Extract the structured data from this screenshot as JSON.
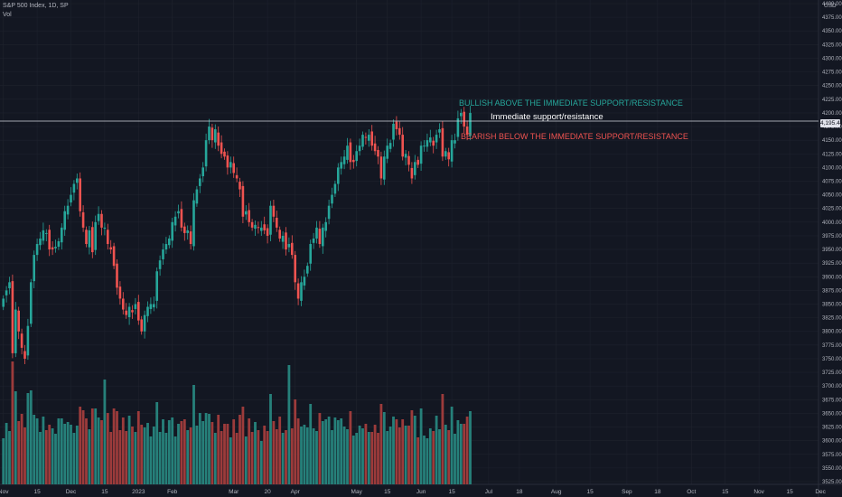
{
  "legend": {
    "symbol": "S&P 500 Index, 1D, SP",
    "volume_label": "Vol"
  },
  "price_axis": {
    "currency": "USD"
  },
  "current_price": "4,195.44",
  "chart_data": {
    "type": "candlestick",
    "title": "S&P 500 Index, 1D, SP",
    "ylim": [
      3525,
      4400
    ],
    "y_ticks": [
      "4400.00",
      "4375.00",
      "4350.00",
      "4325.00",
      "4300.00",
      "4275.00",
      "4250.00",
      "4225.00",
      "4200.00",
      "4175.00",
      "4150.00",
      "4125.00",
      "4100.00",
      "4075.00",
      "4050.00",
      "4025.00",
      "4000.00",
      "3975.00",
      "3950.00",
      "3925.00",
      "3900.00",
      "3875.00",
      "3850.00",
      "3825.00",
      "3800.00",
      "3775.00",
      "3750.00",
      "3725.00",
      "3700.00",
      "3675.00",
      "3650.00",
      "3625.00",
      "3600.00",
      "3575.00",
      "3550.00",
      "3525.00"
    ],
    "x_ticks": [
      "Nov",
      "15",
      "Dec",
      "15",
      "2023",
      "Feb",
      "Mar",
      "20",
      "Apr",
      "May",
      "15",
      "Jun",
      "15",
      "Jul",
      "18",
      "Aug",
      "15",
      "Sep",
      "18",
      "Oct",
      "15",
      "Nov",
      "15",
      "Dec"
    ],
    "x_tick_index": [
      0,
      11,
      22,
      33,
      44,
      55,
      75,
      86,
      95,
      115,
      125,
      136,
      146,
      158,
      168,
      180,
      191,
      203,
      213,
      224,
      235,
      246,
      256,
      266
    ],
    "closes": [
      3860,
      3875,
      3890,
      3760,
      3840,
      3800,
      3770,
      3750,
      3810,
      3890,
      3940,
      3960,
      3970,
      3985,
      3980,
      3950,
      3950,
      3955,
      3965,
      3990,
      4020,
      4030,
      4050,
      4070,
      4080,
      4020,
      3990,
      3960,
      3985,
      3945,
      4000,
      4015,
      3990,
      3990,
      3960,
      3950,
      3920,
      3880,
      3860,
      3840,
      3830,
      3845,
      3835,
      3850,
      3820,
      3800,
      3830,
      3845,
      3850,
      3850,
      3910,
      3930,
      3950,
      3960,
      3970,
      4000,
      4010,
      4020,
      3990,
      3980,
      3985,
      3960,
      4040,
      4060,
      4080,
      4100,
      4150,
      4175,
      4150,
      4170,
      4140,
      4125,
      4120,
      4100,
      4110,
      4090,
      4080,
      4060,
      4010,
      4020,
      4000,
      3990,
      3995,
      3990,
      3990,
      3985,
      3975,
      4030,
      4010,
      3990,
      3970,
      3975,
      3950,
      3960,
      3940,
      3890,
      3860,
      3890,
      3900,
      3920,
      3960,
      3970,
      3990,
      3960,
      3990,
      4000,
      4030,
      4050,
      4070,
      4100,
      4110,
      4120,
      4140,
      4110,
      4110,
      4130,
      4140,
      4160,
      4155,
      4160,
      4140,
      4130,
      4120,
      4080,
      4120,
      4140,
      4145,
      4180,
      4170,
      4160,
      4120,
      4125,
      4105,
      4080,
      4110,
      4105,
      4140,
      4140,
      4150,
      4155,
      4140,
      4160,
      4170,
      4120,
      4130,
      4115,
      4150,
      4150,
      4190,
      4200,
      4175,
      4160,
      4200
    ],
    "volume_note": "Volume histogram (Vol) in lower pane",
    "annotations": [
      {
        "text": "BULLISH ABOVE THE IMMEDIATE SUPPORT/RESISTANCE",
        "color": "#26a69a"
      },
      {
        "text": "Immediate support/resistance",
        "color": "#ffffff"
      },
      {
        "text": "BEARISH BELOW THE IMMEDIATE SUPPORT/RESISTANCE",
        "color": "#ef5350"
      }
    ],
    "support_resistance_level": 4185
  },
  "colors": {
    "background": "#131722",
    "up": "#26a69a",
    "down": "#ef5350",
    "vol_up": "#26807a",
    "vol_down": "#9c3b3b",
    "grid": "#1e222d",
    "axis_text": "#b2b5be"
  }
}
